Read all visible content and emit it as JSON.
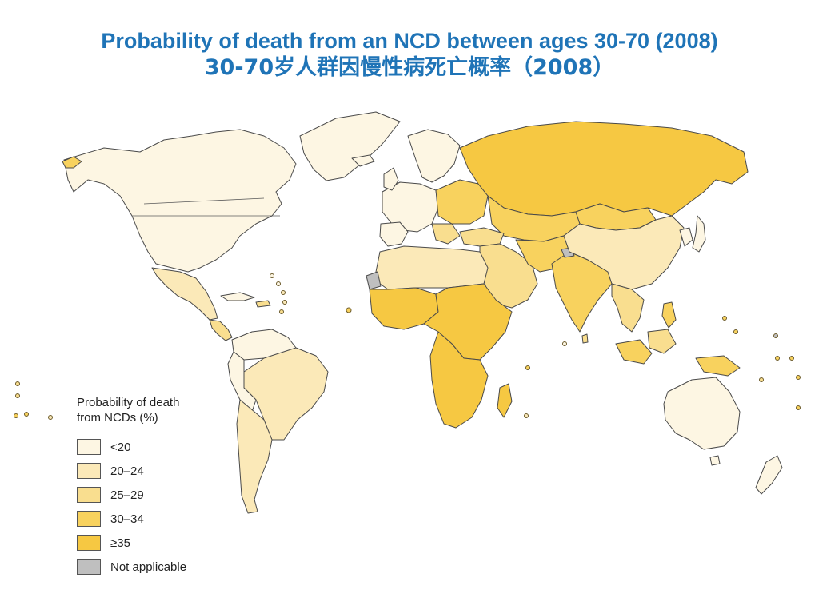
{
  "title": {
    "line1": "Probability of death from an NCD between ages 30-70 (2008)",
    "line2": "30-70岁人群因慢性病死亡概率（2008）"
  },
  "colors": {
    "lt20": "#fdf6e3",
    "c20_24": "#fbe9b8",
    "c25_29": "#f9de8f",
    "c30_34": "#f8d25e",
    "gte35": "#f6c842",
    "na": "#bfbfbf",
    "title": "#1f74b7"
  },
  "legend": {
    "title": "Probability of death\nfrom NCDs (%)",
    "items": [
      {
        "label": "<20",
        "color": "#fdf6e3"
      },
      {
        "label": "20–24",
        "color": "#fbe9b8"
      },
      {
        "label": "25–29",
        "color": "#f9de8f"
      },
      {
        "label": "30–34",
        "color": "#f8d25e"
      },
      {
        "label": "≥35",
        "color": "#f6c842"
      },
      {
        "label": "Not applicable",
        "color": "#bfbfbf"
      }
    ]
  }
}
